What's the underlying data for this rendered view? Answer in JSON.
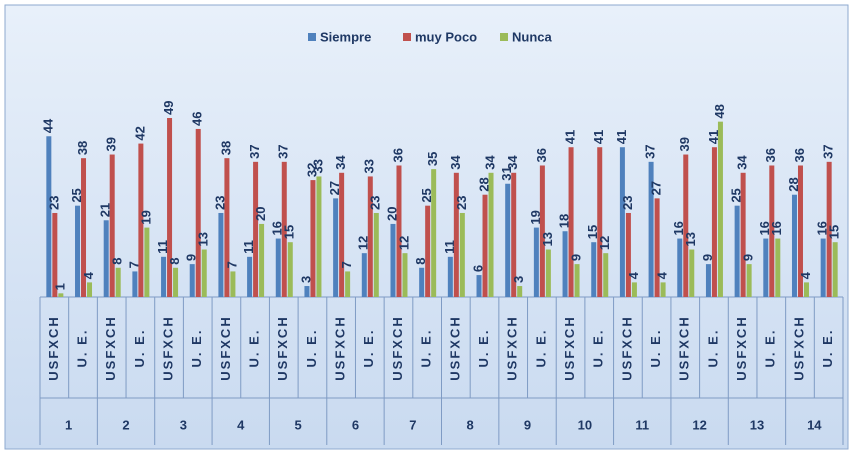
{
  "chart_data": {
    "type": "bar",
    "groups": [
      "1",
      "2",
      "3",
      "4",
      "5",
      "6",
      "7",
      "8",
      "9",
      "10",
      "11",
      "12",
      "13",
      "14"
    ],
    "categories": [
      "USFXCH",
      "U. E.",
      "USFXCH",
      "U. E.",
      "USFXCH",
      "U. E.",
      "USFXCH",
      "U. E.",
      "USFXCH",
      "U. E.",
      "USFXCH",
      "U. E.",
      "USFXCH",
      "U. E.",
      "USFXCH",
      "U. E.",
      "USFXCH",
      "U. E.",
      "USFXCH",
      "U. E.",
      "USFXCH",
      "U. E.",
      "USFXCH",
      "U. E.",
      "USFXCH",
      "U. E.",
      "USFXCH",
      "U. E."
    ],
    "series": [
      {
        "name": "Siempre",
        "color": "#4f81bd",
        "values": [
          44,
          25,
          21,
          7,
          11,
          9,
          23,
          11,
          16,
          3,
          27,
          12,
          20,
          8,
          11,
          6,
          31,
          19,
          18,
          15,
          41,
          37,
          16,
          9,
          25,
          16,
          28,
          16
        ]
      },
      {
        "name": "muy Poco",
        "color": "#c0504d",
        "values": [
          23,
          38,
          39,
          42,
          49,
          46,
          38,
          37,
          37,
          32,
          34,
          33,
          36,
          25,
          34,
          28,
          34,
          36,
          41,
          41,
          23,
          27,
          39,
          41,
          34,
          36,
          36,
          37
        ]
      },
      {
        "name": "Nunca",
        "color": "#9bbb59",
        "values": [
          1,
          4,
          8,
          19,
          8,
          13,
          7,
          20,
          15,
          33,
          7,
          23,
          12,
          35,
          23,
          34,
          3,
          13,
          9,
          12,
          4,
          4,
          13,
          48,
          9,
          16,
          4,
          15
        ]
      }
    ],
    "legend": "top"
  }
}
